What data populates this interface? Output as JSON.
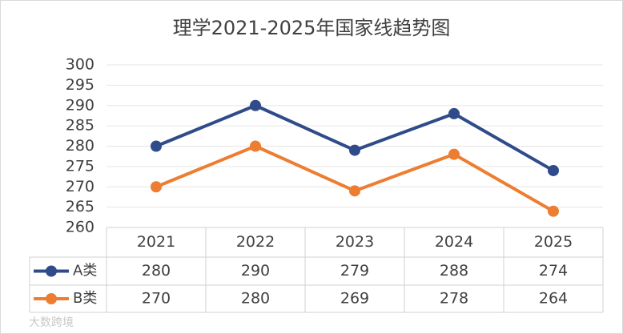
{
  "chart_data": {
    "type": "line",
    "title": "理学2021-2025年国家线趋势图",
    "categories": [
      "2021",
      "2022",
      "2023",
      "2024",
      "2025"
    ],
    "series": [
      {
        "name": "A类",
        "color": "#2f4b8a",
        "values": [
          280,
          290,
          279,
          288,
          274
        ]
      },
      {
        "name": "B类",
        "color": "#ed7d31",
        "values": [
          270,
          280,
          269,
          278,
          264
        ]
      }
    ],
    "ylim": [
      260,
      300
    ],
    "yticks": [
      260,
      265,
      270,
      275,
      280,
      285,
      290,
      295,
      300
    ],
    "grid": true,
    "data_table": true
  },
  "watermark": "大数跨境"
}
